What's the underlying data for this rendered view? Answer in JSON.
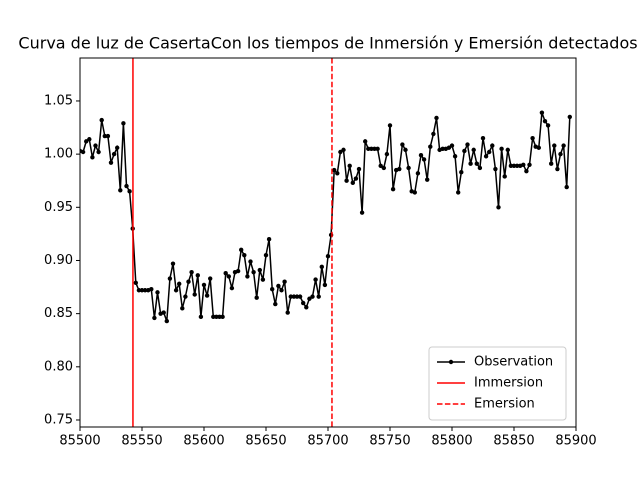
{
  "chart_data": {
    "type": "line",
    "title": "Curva de luz de CasertaCon los tiempos de Inmersión y Emersión detectados",
    "x": [
      85500,
      85502.5,
      85505,
      85507.5,
      85510,
      85512.5,
      85515,
      85517.5,
      85520,
      85522.5,
      85525,
      85527.5,
      85530,
      85532.5,
      85535,
      85537.5,
      85540,
      85542.5,
      85545,
      85547.5,
      85550,
      85552.5,
      85555,
      85557.5,
      85560,
      85562.5,
      85565,
      85567.5,
      85570,
      85572.5,
      85575,
      85577.5,
      85580,
      85582.5,
      85585,
      85587.5,
      85590,
      85592.5,
      85595,
      85597.5,
      85600,
      85602.5,
      85605,
      85607.5,
      85610,
      85612.5,
      85615,
      85617.5,
      85620,
      85622.5,
      85625,
      85627.5,
      85630,
      85632.5,
      85635,
      85637.5,
      85640,
      85642.5,
      85645,
      85647.5,
      85650,
      85652.5,
      85655,
      85657.5,
      85660,
      85662.5,
      85665,
      85667.5,
      85670,
      85672.5,
      85675,
      85677.5,
      85680,
      85682.5,
      85685,
      85687.5,
      85690,
      85692.5,
      85695,
      85697.5,
      85700,
      85702.5,
      85705,
      85707.5,
      85710,
      85712.5,
      85715,
      85717.5,
      85720,
      85722.5,
      85725,
      85727.5,
      85730,
      85732.5,
      85735,
      85737.5,
      85740,
      85742.5,
      85745,
      85747.5,
      85750,
      85752.5,
      85755,
      85757.5,
      85760,
      85762.5,
      85765,
      85767.5,
      85770,
      85772.5,
      85775,
      85777.5,
      85780,
      85782.5,
      85785,
      85787.5,
      85790,
      85792.5,
      85795,
      85797.5,
      85800,
      85802.5,
      85805,
      85807.5,
      85810,
      85812.5,
      85815,
      85817.5,
      85820,
      85822.5,
      85825,
      85827.5,
      85830,
      85832.5,
      85835,
      85837.5,
      85840,
      85842.5,
      85845,
      85847.5,
      85850,
      85852.5,
      85855,
      85857.5,
      85860,
      85862.5,
      85865,
      85867.5,
      85870,
      85872.5,
      85875,
      85877.5,
      85880,
      85882.5,
      85885,
      85887.5,
      85890,
      85892.5,
      85895
    ],
    "series": [
      {
        "name": "Observation",
        "color": "#000000",
        "values": [
          1.003,
          1.002,
          1.012,
          1.014,
          0.997,
          1.008,
          1.002,
          1.032,
          1.017,
          1.017,
          0.992,
          1.0,
          1.006,
          0.966,
          1.029,
          0.97,
          0.965,
          0.93,
          0.879,
          0.872,
          0.872,
          0.872,
          0.872,
          0.873,
          0.846,
          0.87,
          0.85,
          0.851,
          0.843,
          0.883,
          0.897,
          0.872,
          0.878,
          0.855,
          0.866,
          0.88,
          0.889,
          0.868,
          0.886,
          0.847,
          0.877,
          0.867,
          0.883,
          0.847,
          0.847,
          0.847,
          0.847,
          0.888,
          0.885,
          0.874,
          0.889,
          0.89,
          0.91,
          0.905,
          0.885,
          0.899,
          0.889,
          0.865,
          0.891,
          0.882,
          0.905,
          0.92,
          0.873,
          0.859,
          0.876,
          0.872,
          0.88,
          0.851,
          0.866,
          0.866,
          0.866,
          0.866,
          0.86,
          0.856,
          0.864,
          0.866,
          0.882,
          0.866,
          0.894,
          0.877,
          0.904,
          0.924,
          0.985,
          0.982,
          1.002,
          1.004,
          0.975,
          0.989,
          0.973,
          0.977,
          0.986,
          0.945,
          1.012,
          1.005,
          1.005,
          1.005,
          1.005,
          0.989,
          0.987,
          1.0,
          1.027,
          0.967,
          0.985,
          0.986,
          1.009,
          1.004,
          0.987,
          0.965,
          0.964,
          0.982,
          0.999,
          0.995,
          0.976,
          1.007,
          1.019,
          1.034,
          1.004,
          1.005,
          1.005,
          1.006,
          1.008,
          0.998,
          0.964,
          0.983,
          1.003,
          1.009,
          0.991,
          1.004,
          0.991,
          0.987,
          1.015,
          0.998,
          1.002,
          1.008,
          0.986,
          0.95,
          1.005,
          0.979,
          1.004,
          0.989,
          0.989,
          0.989,
          0.989,
          0.99,
          0.984,
          0.99,
          1.015,
          1.007,
          1.006,
          1.039,
          1.031,
          1.027,
          0.991,
          1.008,
          0.986,
          1.0,
          1.008,
          0.969,
          1.035
        ]
      }
    ],
    "vlines": [
      {
        "name": "Immersion",
        "x": 85542.7,
        "color": "#ff0000",
        "style": "solid"
      },
      {
        "name": "Emersion",
        "x": 85703.2,
        "color": "#ff0000",
        "style": "dashed"
      }
    ],
    "xlim": [
      85500,
      85900
    ],
    "xticks": [
      85500,
      85550,
      85600,
      85650,
      85700,
      85750,
      85800,
      85850,
      85900
    ],
    "ylim": [
      0.7434,
      1.0904
    ],
    "yticks": [
      0.75,
      {
        "value": 0.8,
        "label": "0.80"
      },
      0.85,
      {
        "value": 0.9,
        "label": "0.90"
      },
      0.95,
      {
        "value": 1.0,
        "label": "1.00"
      },
      1.05
    ],
    "legend": "lower right"
  }
}
